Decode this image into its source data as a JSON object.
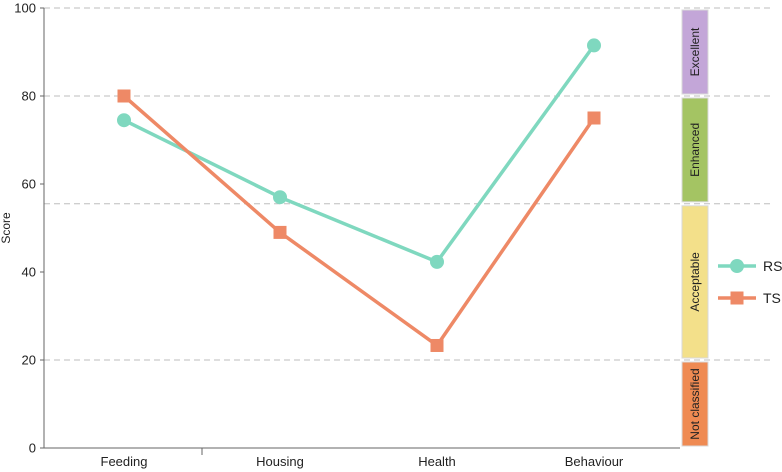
{
  "chart_data": {
    "type": "line",
    "title": "",
    "xlabel": "",
    "ylabel": "Score",
    "categories": [
      "Feeding",
      "Housing",
      "Health",
      "Behaviour"
    ],
    "ylim": [
      0,
      100
    ],
    "yticks": [
      0,
      20,
      40,
      60,
      80,
      100
    ],
    "grid": "dashed horizontal lines at class thresholds",
    "thresholds": [
      20,
      55.5,
      80,
      100
    ],
    "series": [
      {
        "name": "RS",
        "values": [
          74.5,
          57,
          42.3,
          91.5
        ],
        "color": "#7fd8bf",
        "marker": "circle"
      },
      {
        "name": "TS",
        "values": [
          80,
          49,
          23.3,
          75
        ],
        "color": "#ee8966",
        "marker": "square"
      }
    ],
    "legend_position": "right",
    "classes": [
      {
        "label": "Excellent",
        "from": 80,
        "to": 100,
        "color": "#c3a6d8"
      },
      {
        "label": "Enhanced",
        "from": 55.5,
        "to": 80,
        "color": "#a4c463"
      },
      {
        "label": "Acceptable",
        "from": 20,
        "to": 55.5,
        "color": "#f3e08a"
      },
      {
        "label": "Not classified",
        "from": 0,
        "to": 20,
        "color": "#ef8a52"
      }
    ]
  }
}
